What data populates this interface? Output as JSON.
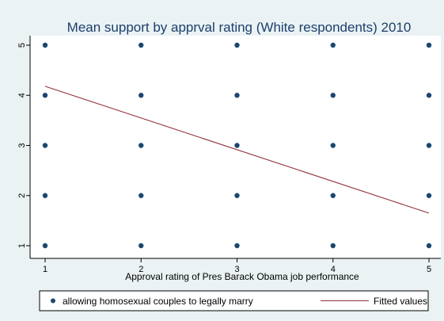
{
  "chart_data": {
    "type": "scatter",
    "title": "Mean support by apprval rating (White respondents) 2010",
    "xlabel": "Approval rating of Pres Barack Obama job performance",
    "ylabel": "",
    "xlim": [
      1,
      5
    ],
    "ylim": [
      1,
      5
    ],
    "x_ticks": [
      1,
      2,
      3,
      4,
      5
    ],
    "y_ticks": [
      1,
      2,
      3,
      4,
      5
    ],
    "grid": false,
    "legend_position": "bottom",
    "series": [
      {
        "name": "allowing homosexual couples to legally marry",
        "type": "scatter",
        "color": "#1a476f",
        "points": [
          [
            1,
            1
          ],
          [
            1,
            2
          ],
          [
            1,
            3
          ],
          [
            1,
            4
          ],
          [
            1,
            5
          ],
          [
            2,
            1
          ],
          [
            2,
            2
          ],
          [
            2,
            3
          ],
          [
            2,
            4
          ],
          [
            2,
            5
          ],
          [
            3,
            1
          ],
          [
            3,
            2
          ],
          [
            3,
            3
          ],
          [
            3,
            4
          ],
          [
            3,
            5
          ],
          [
            4,
            1
          ],
          [
            4,
            2
          ],
          [
            4,
            3
          ],
          [
            4,
            4
          ],
          [
            4,
            5
          ],
          [
            5,
            1
          ],
          [
            5,
            2
          ],
          [
            5,
            3
          ],
          [
            5,
            4
          ],
          [
            5,
            5
          ]
        ]
      },
      {
        "name": "Fitted values",
        "type": "line",
        "color": "#90353b",
        "points": [
          [
            1,
            4.18
          ],
          [
            5,
            1.65
          ]
        ]
      }
    ]
  }
}
